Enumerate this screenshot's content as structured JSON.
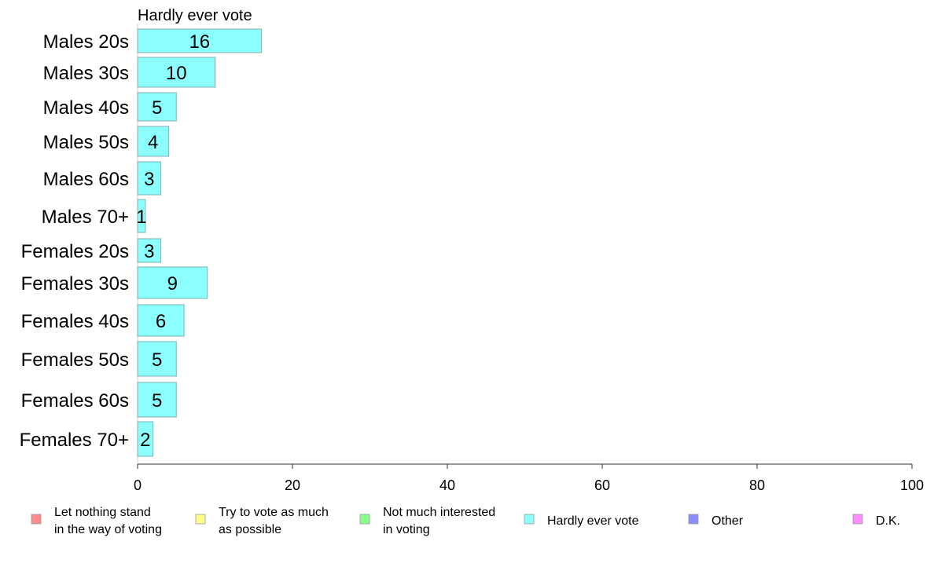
{
  "chart_data": {
    "type": "bar",
    "orientation": "horizontal",
    "title": "Hardly ever vote",
    "categories": [
      "Males 20s",
      "Males 30s",
      "Males 40s",
      "Males 50s",
      "Males 60s",
      "Males 70+",
      "Females 20s",
      "Females 30s",
      "Females 40s",
      "Females 50s",
      "Females 60s",
      "Females 70+"
    ],
    "series": [
      {
        "name": "Hardly ever vote",
        "values": [
          16,
          10,
          5,
          4,
          3,
          1,
          3,
          9,
          6,
          5,
          5,
          2
        ]
      }
    ],
    "value_labels": [
      "16",
      "10",
      "5",
      "4",
      "3",
      "1",
      "3",
      "9",
      "6",
      "5",
      "5",
      "2"
    ],
    "xlim": [
      0,
      100
    ],
    "xticks": [
      "0",
      "20",
      "40",
      "60",
      "80",
      "100"
    ],
    "grid": false,
    "legend_position": "bottom",
    "legend": [
      {
        "lines": [
          "Let nothing stand",
          "in the way of voting"
        ],
        "color": "#ff8c8c"
      },
      {
        "lines": [
          "Try to vote as much",
          "as possible"
        ],
        "color": "#ffff8c"
      },
      {
        "lines": [
          "Not much interested",
          "in voting"
        ],
        "color": "#8cff8c"
      },
      {
        "lines": [
          "Hardly ever vote"
        ],
        "color": "#8cffff"
      },
      {
        "lines": [
          "Other"
        ],
        "color": "#8c8cff"
      },
      {
        "lines": [
          "D.K."
        ],
        "color": "#ff8cff"
      }
    ],
    "bar_color": "#8cffff",
    "bar_edge_color": "#7fb2b2"
  }
}
